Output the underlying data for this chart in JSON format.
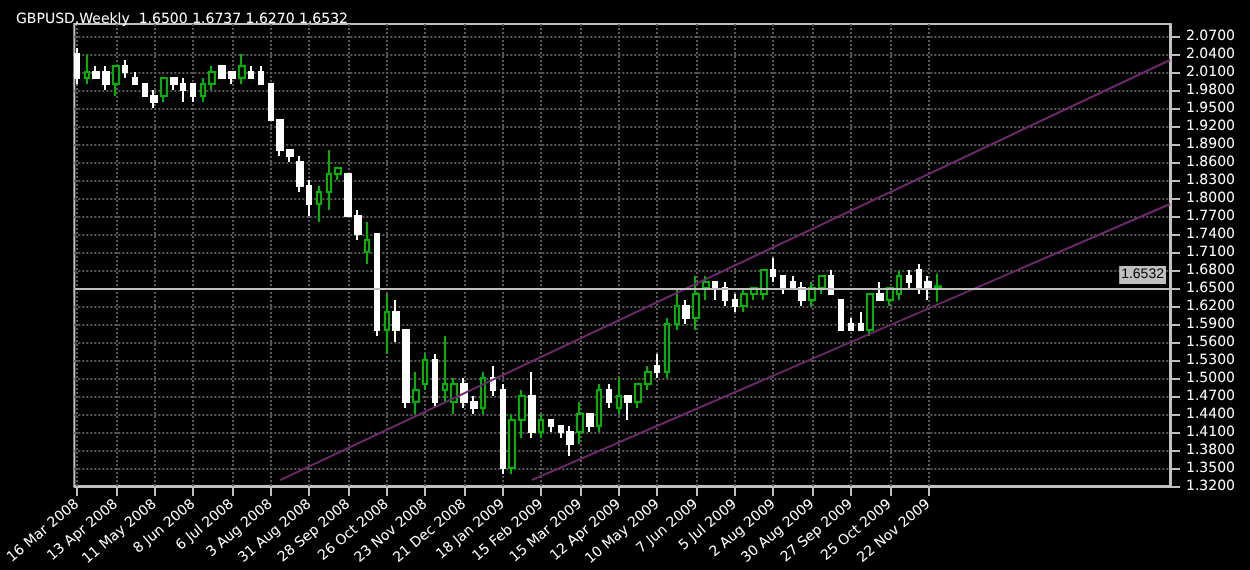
{
  "chart_data": {
    "type": "candlestick",
    "title": "GBPUSD,Weekly  1.6500 1.6737 1.6270 1.6532",
    "x": [
      "2008-03-16",
      "2008-03-23",
      "2008-03-30",
      "2008-04-06",
      "2008-04-13",
      "2008-04-20",
      "2008-04-27",
      "2008-05-04",
      "2008-05-11",
      "2008-05-18",
      "2008-05-25",
      "2008-06-01",
      "2008-06-08",
      "2008-06-15",
      "2008-06-22",
      "2008-06-29",
      "2008-07-06",
      "2008-07-13",
      "2008-07-20",
      "2008-07-27",
      "2008-08-03",
      "2008-08-10",
      "2008-08-17",
      "2008-08-24",
      "2008-08-31",
      "2008-09-07",
      "2008-09-14",
      "2008-09-21",
      "2008-09-28",
      "2008-10-05",
      "2008-10-12",
      "2008-10-19",
      "2008-10-26",
      "2008-11-02",
      "2008-11-09",
      "2008-11-16",
      "2008-11-23",
      "2008-11-30",
      "2008-12-07",
      "2008-12-14",
      "2008-12-21",
      "2008-12-28",
      "2009-01-04",
      "2009-01-11",
      "2009-01-18",
      "2009-01-25",
      "2009-02-01",
      "2009-02-08",
      "2009-02-15",
      "2009-02-22",
      "2009-03-01",
      "2009-03-08",
      "2009-03-15",
      "2009-03-22",
      "2009-03-29",
      "2009-04-05",
      "2009-04-12",
      "2009-04-19",
      "2009-04-26",
      "2009-05-03",
      "2009-05-10",
      "2009-05-17",
      "2009-05-24",
      "2009-05-31",
      "2009-06-07",
      "2009-06-14",
      "2009-06-21",
      "2009-06-28",
      "2009-07-05",
      "2009-07-12",
      "2009-07-19",
      "2009-07-26",
      "2009-08-02",
      "2009-08-09",
      "2009-08-16",
      "2009-08-23",
      "2009-08-30",
      "2009-09-06",
      "2009-09-13",
      "2009-09-20",
      "2009-09-27",
      "2009-10-04",
      "2009-10-11",
      "2009-10-18",
      "2009-10-25",
      "2009-11-01",
      "2009-11-08",
      "2009-11-15",
      "2009-11-22",
      "2009-11-29"
    ],
    "ohlc": [
      [
        2.04,
        2.05,
        1.99,
        2.0
      ],
      [
        2.0,
        2.04,
        1.99,
        2.01
      ],
      [
        2.01,
        2.02,
        2.0,
        2.0
      ],
      [
        2.01,
        2.02,
        1.98,
        1.99
      ],
      [
        1.99,
        2.02,
        1.97,
        2.02
      ],
      [
        2.02,
        2.03,
        2.0,
        2.01
      ],
      [
        2.0,
        2.01,
        1.99,
        1.99
      ],
      [
        1.99,
        1.99,
        1.97,
        1.97
      ],
      [
        1.97,
        1.98,
        1.95,
        1.96
      ],
      [
        1.97,
        2.0,
        1.96,
        2.0
      ],
      [
        2.0,
        2.0,
        1.98,
        1.99
      ],
      [
        1.99,
        2.0,
        1.96,
        1.98
      ],
      [
        1.99,
        1.99,
        1.96,
        1.97
      ],
      [
        1.97,
        2.0,
        1.96,
        1.99
      ],
      [
        1.99,
        2.02,
        1.98,
        2.01
      ],
      [
        2.02,
        2.02,
        2.0,
        2.0
      ],
      [
        2.01,
        2.01,
        1.99,
        2.0
      ],
      [
        2.0,
        2.04,
        1.99,
        2.02
      ],
      [
        2.01,
        2.02,
        2.0,
        2.0
      ],
      [
        2.01,
        2.02,
        1.99,
        1.99
      ],
      [
        1.99,
        1.99,
        1.93,
        1.93
      ],
      [
        1.93,
        1.93,
        1.87,
        1.88
      ],
      [
        1.88,
        1.88,
        1.86,
        1.87
      ],
      [
        1.86,
        1.87,
        1.81,
        1.82
      ],
      [
        1.82,
        1.83,
        1.77,
        1.79
      ],
      [
        1.79,
        1.82,
        1.76,
        1.81
      ],
      [
        1.81,
        1.88,
        1.78,
        1.84
      ],
      [
        1.84,
        1.85,
        1.83,
        1.85
      ],
      [
        1.84,
        1.84,
        1.77,
        1.77
      ],
      [
        1.77,
        1.78,
        1.73,
        1.74
      ],
      [
        1.71,
        1.76,
        1.69,
        1.73
      ],
      [
        1.74,
        1.74,
        1.57,
        1.58
      ],
      [
        1.58,
        1.64,
        1.54,
        1.61
      ],
      [
        1.61,
        1.63,
        1.56,
        1.58
      ],
      [
        1.58,
        1.58,
        1.45,
        1.46
      ],
      [
        1.46,
        1.51,
        1.44,
        1.48
      ],
      [
        1.49,
        1.54,
        1.48,
        1.53
      ],
      [
        1.53,
        1.54,
        1.45,
        1.46
      ],
      [
        1.48,
        1.57,
        1.46,
        1.49
      ],
      [
        1.46,
        1.5,
        1.44,
        1.49
      ],
      [
        1.49,
        1.5,
        1.45,
        1.46
      ],
      [
        1.46,
        1.47,
        1.44,
        1.45
      ],
      [
        1.45,
        1.51,
        1.44,
        1.5
      ],
      [
        1.5,
        1.52,
        1.47,
        1.48
      ],
      [
        1.48,
        1.49,
        1.34,
        1.35
      ],
      [
        1.35,
        1.44,
        1.34,
        1.43
      ],
      [
        1.43,
        1.48,
        1.4,
        1.47
      ],
      [
        1.47,
        1.51,
        1.4,
        1.41
      ],
      [
        1.41,
        1.44,
        1.4,
        1.43
      ],
      [
        1.43,
        1.43,
        1.41,
        1.42
      ],
      [
        1.42,
        1.42,
        1.4,
        1.41
      ],
      [
        1.41,
        1.42,
        1.37,
        1.39
      ],
      [
        1.41,
        1.46,
        1.39,
        1.44
      ],
      [
        1.44,
        1.44,
        1.41,
        1.42
      ],
      [
        1.42,
        1.49,
        1.41,
        1.48
      ],
      [
        1.48,
        1.49,
        1.45,
        1.46
      ],
      [
        1.45,
        1.5,
        1.44,
        1.47
      ],
      [
        1.47,
        1.47,
        1.43,
        1.46
      ],
      [
        1.46,
        1.49,
        1.45,
        1.49
      ],
      [
        1.49,
        1.52,
        1.48,
        1.51
      ],
      [
        1.52,
        1.54,
        1.5,
        1.51
      ],
      [
        1.51,
        1.6,
        1.5,
        1.59
      ],
      [
        1.59,
        1.65,
        1.58,
        1.62
      ],
      [
        1.62,
        1.63,
        1.59,
        1.6
      ],
      [
        1.6,
        1.67,
        1.58,
        1.64
      ],
      [
        1.65,
        1.67,
        1.63,
        1.66
      ],
      [
        1.66,
        1.66,
        1.63,
        1.65
      ],
      [
        1.65,
        1.66,
        1.62,
        1.63
      ],
      [
        1.63,
        1.64,
        1.61,
        1.62
      ],
      [
        1.62,
        1.65,
        1.61,
        1.64
      ],
      [
        1.64,
        1.65,
        1.63,
        1.65
      ],
      [
        1.64,
        1.68,
        1.63,
        1.68
      ],
      [
        1.68,
        1.7,
        1.66,
        1.67
      ],
      [
        1.67,
        1.67,
        1.64,
        1.65
      ],
      [
        1.66,
        1.67,
        1.65,
        1.65
      ],
      [
        1.65,
        1.66,
        1.62,
        1.63
      ],
      [
        1.63,
        1.66,
        1.62,
        1.65
      ],
      [
        1.65,
        1.67,
        1.64,
        1.67
      ],
      [
        1.67,
        1.68,
        1.64,
        1.64
      ],
      [
        1.63,
        1.63,
        1.58,
        1.58
      ],
      [
        1.59,
        1.6,
        1.58,
        1.58
      ],
      [
        1.59,
        1.61,
        1.58,
        1.58
      ],
      [
        1.58,
        1.64,
        1.57,
        1.64
      ],
      [
        1.64,
        1.66,
        1.63,
        1.63
      ],
      [
        1.63,
        1.65,
        1.62,
        1.65
      ],
      [
        1.64,
        1.68,
        1.63,
        1.67
      ],
      [
        1.67,
        1.68,
        1.65,
        1.66
      ],
      [
        1.68,
        1.69,
        1.64,
        1.65
      ],
      [
        1.66,
        1.67,
        1.63,
        1.65
      ],
      [
        1.65,
        1.6737,
        1.627,
        1.6532
      ]
    ],
    "colors": [
      "#ffffff",
      "#00b400",
      "#ffffff",
      "#ffffff",
      "#00b400",
      "#ffffff",
      "#ffffff",
      "#ffffff",
      "#ffffff",
      "#00b400",
      "#ffffff",
      "#ffffff",
      "#ffffff",
      "#00b400",
      "#00b400",
      "#ffffff",
      "#ffffff",
      "#00b400",
      "#ffffff",
      "#ffffff",
      "#ffffff",
      "#ffffff",
      "#ffffff",
      "#ffffff",
      "#ffffff",
      "#00b400",
      "#00b400",
      "#00b400",
      "#ffffff",
      "#ffffff",
      "#00b400",
      "#ffffff",
      "#00b400",
      "#ffffff",
      "#ffffff",
      "#00b400",
      "#00b400",
      "#ffffff",
      "#00b400",
      "#00b400",
      "#ffffff",
      "#ffffff",
      "#00b400",
      "#ffffff",
      "#ffffff",
      "#00b400",
      "#00b400",
      "#ffffff",
      "#00b400",
      "#ffffff",
      "#ffffff",
      "#ffffff",
      "#00b400",
      "#ffffff",
      "#00b400",
      "#ffffff",
      "#00b400",
      "#ffffff",
      "#00b400",
      "#00b400",
      "#ffffff",
      "#00b400",
      "#00b400",
      "#ffffff",
      "#00b400",
      "#00b400",
      "#ffffff",
      "#ffffff",
      "#ffffff",
      "#00b400",
      "#00b400",
      "#00b400",
      "#ffffff",
      "#ffffff",
      "#ffffff",
      "#ffffff",
      "#00b400",
      "#00b400",
      "#ffffff",
      "#ffffff",
      "#ffffff",
      "#ffffff",
      "#00b400",
      "#ffffff",
      "#00b400",
      "#00b400",
      "#ffffff",
      "#ffffff",
      "#ffffff",
      "#00b400"
    ],
    "series": [
      {
        "type": "line",
        "color": "#6e2a6e",
        "x": [
          "2008-08-10",
          "2010-05-16"
        ],
        "values": [
          1.33,
          2.03
        ]
      },
      {
        "type": "line",
        "color": "#6e2a6e",
        "x": [
          "2009-02-08",
          "2010-05-16"
        ],
        "values": [
          1.33,
          1.79
        ]
      }
    ],
    "ref_lines": [
      {
        "axis": "y",
        "value": 1.6532,
        "label": "1.6532",
        "color": "#c0c0c0"
      }
    ],
    "xlim": [
      "2008-03-14",
      "2010-05-16"
    ],
    "xticks": [
      {
        "value": "2008-03-16",
        "label": "16 Mar 2008"
      },
      {
        "value": "2008-04-13",
        "label": "13 Apr 2008"
      },
      {
        "value": "2008-05-11",
        "label": "11 May 2008"
      },
      {
        "value": "2008-06-08",
        "label": "8 Jun 2008"
      },
      {
        "value": "2008-07-06",
        "label": "6 Jul 2008"
      },
      {
        "value": "2008-08-03",
        "label": "3 Aug 2008"
      },
      {
        "value": "2008-08-31",
        "label": "31 Aug 2008"
      },
      {
        "value": "2008-09-28",
        "label": "28 Sep 2008"
      },
      {
        "value": "2008-10-26",
        "label": "26 Oct 2008"
      },
      {
        "value": "2008-11-23",
        "label": "23 Nov 2008"
      },
      {
        "value": "2008-12-21",
        "label": "21 Dec 2008"
      },
      {
        "value": "2009-01-18",
        "label": "18 Jan 2009"
      },
      {
        "value": "2009-02-15",
        "label": "15 Feb 2009"
      },
      {
        "value": "2009-03-15",
        "label": "15 Mar 2009"
      },
      {
        "value": "2009-04-12",
        "label": "12 Apr 2009"
      },
      {
        "value": "2009-05-10",
        "label": "10 May 2009"
      },
      {
        "value": "2009-06-07",
        "label": "7 Jun 2009"
      },
      {
        "value": "2009-07-05",
        "label": "5 Jul 2009"
      },
      {
        "value": "2009-08-02",
        "label": "2 Aug 2009"
      },
      {
        "value": "2009-08-30",
        "label": "30 Aug 2009"
      },
      {
        "value": "2009-09-27",
        "label": "27 Sep 2009"
      },
      {
        "value": "2009-10-25",
        "label": "25 Oct 2009"
      },
      {
        "value": "2009-11-22",
        "label": "22 Nov 2009"
      }
    ],
    "ylim": [
      1.32,
      2.09
    ],
    "yticks": [
      {
        "value": 1.32,
        "label": "1.3200"
      },
      {
        "value": 1.35,
        "label": "1.3500"
      },
      {
        "value": 1.38,
        "label": "1.3800"
      },
      {
        "value": 1.41,
        "label": "1.4100"
      },
      {
        "value": 1.44,
        "label": "1.4400"
      },
      {
        "value": 1.47,
        "label": "1.4700"
      },
      {
        "value": 1.5,
        "label": "1.5000"
      },
      {
        "value": 1.53,
        "label": "1.5300"
      },
      {
        "value": 1.56,
        "label": "1.5600"
      },
      {
        "value": 1.59,
        "label": "1.5900"
      },
      {
        "value": 1.62,
        "label": "1.6200"
      },
      {
        "value": 1.65,
        "label": "1.6500"
      },
      {
        "value": 1.68,
        "label": "1.6800"
      },
      {
        "value": 1.71,
        "label": "1.7100"
      },
      {
        "value": 1.74,
        "label": "1.7400"
      },
      {
        "value": 1.77,
        "label": "1.7700"
      },
      {
        "value": 1.8,
        "label": "1.8000"
      },
      {
        "value": 1.83,
        "label": "1.8300"
      },
      {
        "value": 1.86,
        "label": "1.8600"
      },
      {
        "value": 1.89,
        "label": "1.8900"
      },
      {
        "value": 1.92,
        "label": "1.9200"
      },
      {
        "value": 1.95,
        "label": "1.9500"
      },
      {
        "value": 1.98,
        "label": "1.9800"
      },
      {
        "value": 2.01,
        "label": "2.0100"
      },
      {
        "value": 2.04,
        "label": "2.0400"
      },
      {
        "value": 2.07,
        "label": "2.0700"
      }
    ],
    "grid": true
  }
}
